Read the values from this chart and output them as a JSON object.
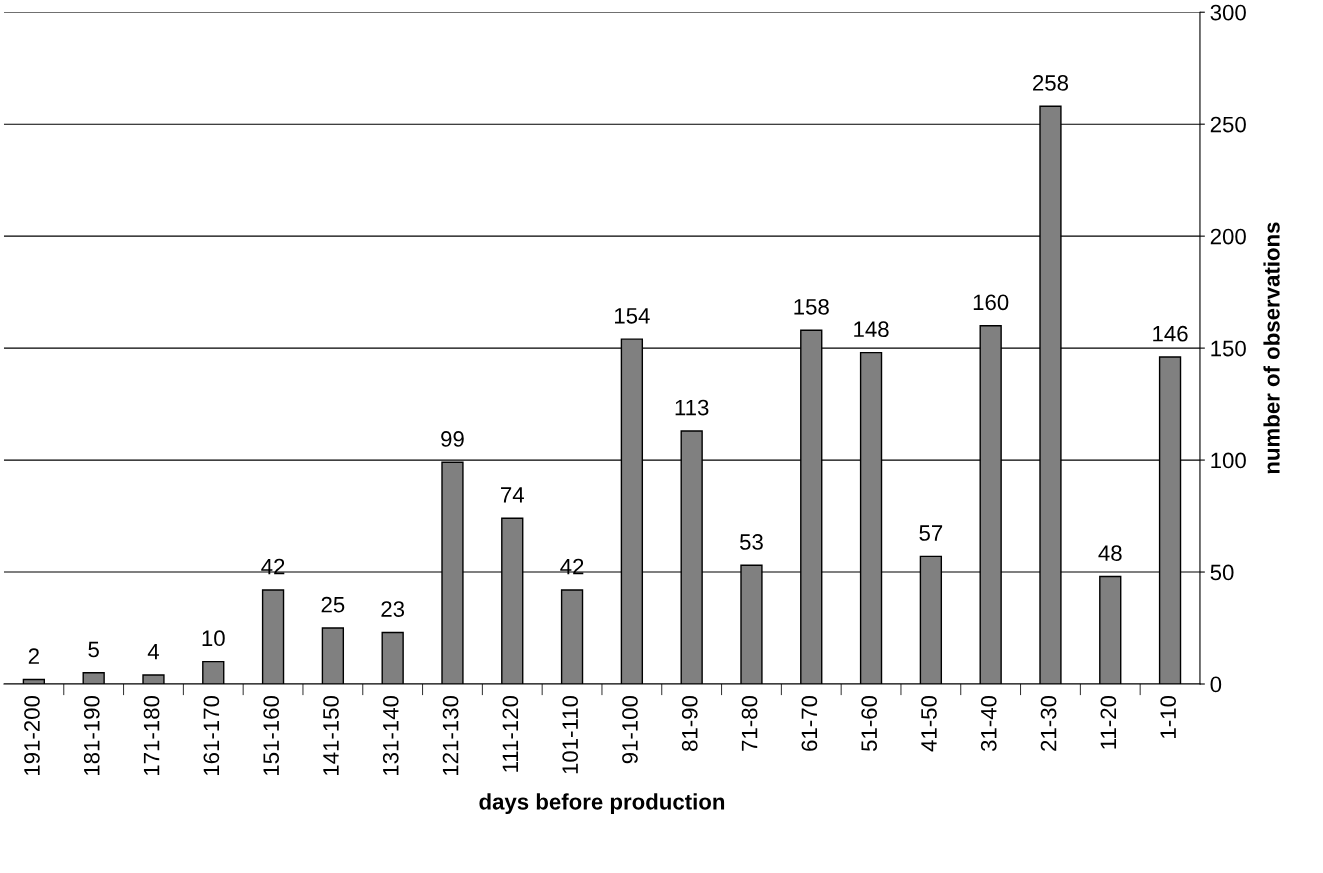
{
  "chart_data": {
    "type": "bar",
    "xlabel": "days before production",
    "ylabel": "number of observations",
    "categories": [
      "191-200",
      "181-190",
      "171-180",
      "161-170",
      "151-160",
      "141-150",
      "131-140",
      "121-130",
      "111-120",
      "101-110",
      "91-100",
      "81-90",
      "71-80",
      "61-70",
      "51-60",
      "41-50",
      "31-40",
      "21-30",
      "11-20",
      "1-10"
    ],
    "values": [
      2,
      5,
      4,
      10,
      42,
      25,
      23,
      99,
      74,
      42,
      154,
      113,
      53,
      158,
      148,
      57,
      160,
      258,
      48,
      146
    ],
    "color": "#808080",
    "ylim": [
      0,
      300
    ],
    "yticks": [
      0,
      50,
      100,
      150,
      200,
      250,
      300
    ],
    "grid": "y",
    "data_labels": true,
    "legend": false
  }
}
